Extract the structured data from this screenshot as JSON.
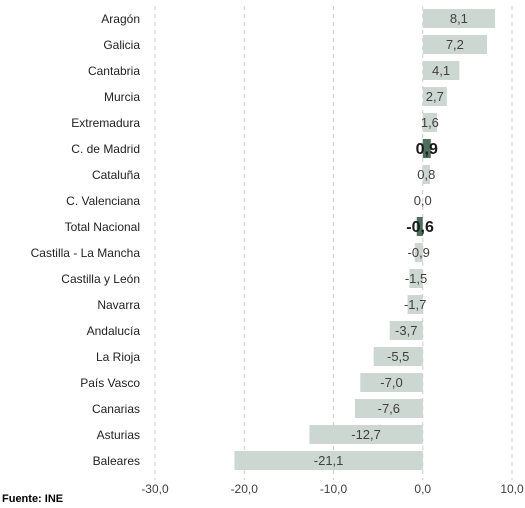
{
  "chart_data": {
    "type": "bar",
    "orientation": "horizontal",
    "categories": [
      "Aragón",
      "Galicia",
      "Cantabria",
      "Murcia",
      "Extremadura",
      "C. de Madrid",
      "Cataluña",
      "C. Valenciana",
      "Total Nacional",
      "Castilla - La Mancha",
      "Castilla y León",
      "Navarra",
      "Andalucía",
      "La Rioja",
      "País Vasco",
      "Canarias",
      "Asturias",
      "Baleares"
    ],
    "values": [
      8.1,
      7.2,
      4.1,
      2.7,
      1.6,
      0.9,
      0.8,
      0.0,
      -0.6,
      -0.9,
      -1.5,
      -1.7,
      -3.7,
      -5.5,
      -7.0,
      -7.6,
      -12.7,
      -21.1
    ],
    "value_labels": [
      "8,1",
      "7,2",
      "4,1",
      "2,7",
      "1,6",
      "0,9",
      "0,8",
      "0,0",
      "-0,6",
      "-0,9",
      "-1,5",
      "-1,7",
      "-3,7",
      "-5,5",
      "-7,0",
      "-7,6",
      "-12,7",
      "-21,1"
    ],
    "highlighted": [
      "C. de Madrid",
      "Total Nacional"
    ],
    "xlim": [
      -30,
      10
    ],
    "xticks": [
      -30,
      -20,
      -10,
      0,
      10
    ],
    "xtick_labels": [
      "-30,0",
      "-20,0",
      "-10,0",
      "0,0",
      "10,0"
    ],
    "grid": "vertical-dashed",
    "colors": {
      "bar": "#cdd7d2",
      "highlight_bar": "#4f6f5e",
      "grid": "#cccccc",
      "text": "#404040"
    },
    "source": "Fuente: INE"
  }
}
